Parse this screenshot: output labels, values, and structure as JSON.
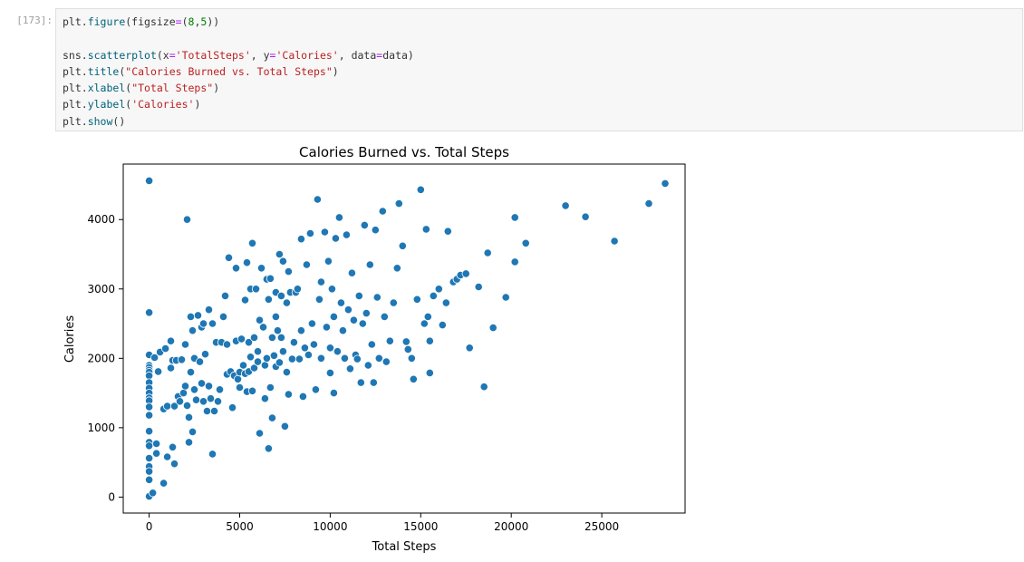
{
  "cell": {
    "prompt": "[173]:",
    "code_lines": [
      [
        {
          "t": "plt.",
          "c": ""
        },
        {
          "t": "figure",
          "c": "fn"
        },
        {
          "t": "(figsize",
          "c": ""
        },
        {
          "t": "=",
          "c": "op"
        },
        {
          "t": "(",
          "c": ""
        },
        {
          "t": "8",
          "c": "num"
        },
        {
          "t": ",",
          "c": ""
        },
        {
          "t": "5",
          "c": "num"
        },
        {
          "t": "))",
          "c": ""
        }
      ],
      [],
      [
        {
          "t": "sns.",
          "c": ""
        },
        {
          "t": "scatterplot",
          "c": "fn"
        },
        {
          "t": "(x",
          "c": ""
        },
        {
          "t": "=",
          "c": "op"
        },
        {
          "t": "'TotalSteps'",
          "c": "str"
        },
        {
          "t": ", y",
          "c": ""
        },
        {
          "t": "=",
          "c": "op"
        },
        {
          "t": "'Calories'",
          "c": "str"
        },
        {
          "t": ", data",
          "c": ""
        },
        {
          "t": "=",
          "c": "op"
        },
        {
          "t": "data)",
          "c": ""
        }
      ],
      [
        {
          "t": "plt.",
          "c": ""
        },
        {
          "t": "title",
          "c": "fn"
        },
        {
          "t": "(",
          "c": ""
        },
        {
          "t": "\"Calories Burned vs. Total Steps\"",
          "c": "str"
        },
        {
          "t": ")",
          "c": ""
        }
      ],
      [
        {
          "t": "plt.",
          "c": ""
        },
        {
          "t": "xlabel",
          "c": "fn"
        },
        {
          "t": "(",
          "c": ""
        },
        {
          "t": "\"Total Steps\"",
          "c": "str"
        },
        {
          "t": ")",
          "c": ""
        }
      ],
      [
        {
          "t": "plt.",
          "c": ""
        },
        {
          "t": "ylabel",
          "c": "fn"
        },
        {
          "t": "(",
          "c": ""
        },
        {
          "t": "'Calories'",
          "c": "str"
        },
        {
          "t": ")",
          "c": ""
        }
      ],
      [
        {
          "t": "plt.",
          "c": ""
        },
        {
          "t": "show",
          "c": "fn"
        },
        {
          "t": "()",
          "c": ""
        }
      ]
    ]
  },
  "chart_data": {
    "type": "scatter",
    "title": "Calories Burned vs. Total Steps",
    "xlabel": "Total Steps",
    "ylabel": "Calories",
    "xlim": [
      -1430,
      29600
    ],
    "ylim": [
      -230,
      4800
    ],
    "xticks": [
      0,
      5000,
      10000,
      15000,
      20000,
      25000
    ],
    "yticks": [
      0,
      1000,
      2000,
      3000,
      4000
    ],
    "grid": false,
    "marker_color": "#1f77b4",
    "points": [
      [
        0,
        4560
      ],
      [
        0,
        2660
      ],
      [
        0,
        2050
      ],
      [
        0,
        1900
      ],
      [
        0,
        1870
      ],
      [
        0,
        1830
      ],
      [
        0,
        1800
      ],
      [
        0,
        1750
      ],
      [
        0,
        1650
      ],
      [
        0,
        1570
      ],
      [
        0,
        1500
      ],
      [
        0,
        1430
      ],
      [
        0,
        1390
      ],
      [
        0,
        1300
      ],
      [
        0,
        1180
      ],
      [
        0,
        950
      ],
      [
        0,
        790
      ],
      [
        0,
        740
      ],
      [
        0,
        560
      ],
      [
        0,
        440
      ],
      [
        0,
        370
      ],
      [
        0,
        250
      ],
      [
        0,
        10
      ],
      [
        200,
        60
      ],
      [
        300,
        2010
      ],
      [
        400,
        770
      ],
      [
        400,
        630
      ],
      [
        500,
        1810
      ],
      [
        600,
        2090
      ],
      [
        800,
        200
      ],
      [
        800,
        1270
      ],
      [
        900,
        2140
      ],
      [
        1000,
        1310
      ],
      [
        1000,
        580
      ],
      [
        1200,
        1860
      ],
      [
        1200,
        2250
      ],
      [
        1300,
        1970
      ],
      [
        1300,
        720
      ],
      [
        1400,
        480
      ],
      [
        1400,
        1310
      ],
      [
        1500,
        1970
      ],
      [
        1600,
        1450
      ],
      [
        1700,
        1380
      ],
      [
        1800,
        1980
      ],
      [
        1900,
        1500
      ],
      [
        2000,
        2200
      ],
      [
        2000,
        1600
      ],
      [
        2100,
        4000
      ],
      [
        2100,
        1320
      ],
      [
        2200,
        1150
      ],
      [
        2200,
        790
      ],
      [
        2300,
        1800
      ],
      [
        2300,
        2600
      ],
      [
        2400,
        2400
      ],
      [
        2400,
        940
      ],
      [
        2500,
        2000
      ],
      [
        2500,
        1550
      ],
      [
        2600,
        1400
      ],
      [
        2700,
        2620
      ],
      [
        2800,
        1950
      ],
      [
        2900,
        2450
      ],
      [
        2900,
        1640
      ],
      [
        3000,
        2500
      ],
      [
        3000,
        1380
      ],
      [
        3100,
        2060
      ],
      [
        3200,
        1240
      ],
      [
        3300,
        2700
      ],
      [
        3300,
        1600
      ],
      [
        3400,
        1420
      ],
      [
        3500,
        620
      ],
      [
        3500,
        2500
      ],
      [
        3600,
        1240
      ],
      [
        3700,
        2230
      ],
      [
        3800,
        1380
      ],
      [
        3900,
        1550
      ],
      [
        4000,
        2230
      ],
      [
        4100,
        2600
      ],
      [
        4200,
        2900
      ],
      [
        4300,
        1770
      ],
      [
        4300,
        2200
      ],
      [
        4400,
        3450
      ],
      [
        4500,
        1810
      ],
      [
        4600,
        1290
      ],
      [
        4700,
        1750
      ],
      [
        4800,
        2250
      ],
      [
        4800,
        3300
      ],
      [
        4900,
        1700
      ],
      [
        5000,
        1800
      ],
      [
        5000,
        1580
      ],
      [
        5100,
        2280
      ],
      [
        5200,
        1900
      ],
      [
        5300,
        1780
      ],
      [
        5300,
        2840
      ],
      [
        5400,
        3380
      ],
      [
        5400,
        1520
      ],
      [
        5500,
        2230
      ],
      [
        5500,
        1810
      ],
      [
        5600,
        3000
      ],
      [
        5600,
        2020
      ],
      [
        5700,
        3660
      ],
      [
        5700,
        1530
      ],
      [
        5800,
        2300
      ],
      [
        5800,
        1860
      ],
      [
        5900,
        3000
      ],
      [
        6000,
        2100
      ],
      [
        6000,
        1950
      ],
      [
        6100,
        2550
      ],
      [
        6100,
        920
      ],
      [
        6200,
        3300
      ],
      [
        6300,
        2450
      ],
      [
        6400,
        1900
      ],
      [
        6400,
        1420
      ],
      [
        6500,
        3140
      ],
      [
        6500,
        2000
      ],
      [
        6600,
        2850
      ],
      [
        6600,
        700
      ],
      [
        6700,
        3150
      ],
      [
        6700,
        1580
      ],
      [
        6800,
        2300
      ],
      [
        6800,
        1140
      ],
      [
        6900,
        2040
      ],
      [
        7000,
        2950
      ],
      [
        7000,
        2600
      ],
      [
        7000,
        1880
      ],
      [
        7100,
        2400
      ],
      [
        7200,
        3500
      ],
      [
        7200,
        1940
      ],
      [
        7300,
        2900
      ],
      [
        7300,
        2300
      ],
      [
        7400,
        3400
      ],
      [
        7400,
        2100
      ],
      [
        7500,
        1020
      ],
      [
        7600,
        2800
      ],
      [
        7600,
        1800
      ],
      [
        7700,
        3250
      ],
      [
        7700,
        1480
      ],
      [
        7800,
        2950
      ],
      [
        7900,
        1990
      ],
      [
        8000,
        2230
      ],
      [
        8100,
        2950
      ],
      [
        8200,
        3000
      ],
      [
        8300,
        1990
      ],
      [
        8400,
        3720
      ],
      [
        8400,
        2400
      ],
      [
        8500,
        1450
      ],
      [
        8600,
        2150
      ],
      [
        8700,
        3350
      ],
      [
        8800,
        2050
      ],
      [
        8900,
        3800
      ],
      [
        9000,
        2500
      ],
      [
        9100,
        2200
      ],
      [
        9200,
        1550
      ],
      [
        9300,
        4290
      ],
      [
        9400,
        2850
      ],
      [
        9500,
        3100
      ],
      [
        9500,
        2000
      ],
      [
        9700,
        3820
      ],
      [
        9800,
        2450
      ],
      [
        9900,
        3400
      ],
      [
        10000,
        2150
      ],
      [
        10000,
        1790
      ],
      [
        10100,
        3000
      ],
      [
        10200,
        2600
      ],
      [
        10200,
        1500
      ],
      [
        10300,
        3730
      ],
      [
        10400,
        2100
      ],
      [
        10500,
        4030
      ],
      [
        10600,
        2800
      ],
      [
        10700,
        2400
      ],
      [
        10800,
        2000
      ],
      [
        10900,
        3780
      ],
      [
        11000,
        2700
      ],
      [
        11100,
        1850
      ],
      [
        11200,
        3230
      ],
      [
        11300,
        2550
      ],
      [
        11400,
        2050
      ],
      [
        11500,
        1990
      ],
      [
        11600,
        2900
      ],
      [
        11700,
        1650
      ],
      [
        11800,
        2500
      ],
      [
        11900,
        3920
      ],
      [
        12000,
        2650
      ],
      [
        12100,
        1900
      ],
      [
        12200,
        3350
      ],
      [
        12300,
        2200
      ],
      [
        12400,
        1650
      ],
      [
        12500,
        3850
      ],
      [
        12600,
        2880
      ],
      [
        12700,
        2000
      ],
      [
        12900,
        4120
      ],
      [
        13000,
        2600
      ],
      [
        13100,
        1950
      ],
      [
        13300,
        2250
      ],
      [
        13500,
        2800
      ],
      [
        13700,
        3300
      ],
      [
        13800,
        4230
      ],
      [
        14000,
        3620
      ],
      [
        14200,
        2240
      ],
      [
        14300,
        2130
      ],
      [
        14500,
        2000
      ],
      [
        14600,
        1700
      ],
      [
        14800,
        2850
      ],
      [
        15000,
        4430
      ],
      [
        15200,
        2500
      ],
      [
        15300,
        3860
      ],
      [
        15400,
        2600
      ],
      [
        15500,
        2250
      ],
      [
        15500,
        1790
      ],
      [
        15700,
        2900
      ],
      [
        16000,
        3000
      ],
      [
        16200,
        2480
      ],
      [
        16400,
        2800
      ],
      [
        16500,
        3830
      ],
      [
        16800,
        3100
      ],
      [
        17000,
        3140
      ],
      [
        17200,
        3200
      ],
      [
        17500,
        3220
      ],
      [
        17700,
        2150
      ],
      [
        18200,
        3030
      ],
      [
        18500,
        1590
      ],
      [
        18700,
        3520
      ],
      [
        19000,
        2440
      ],
      [
        19700,
        2880
      ],
      [
        20200,
        3390
      ],
      [
        20200,
        4030
      ],
      [
        20800,
        3660
      ],
      [
        23000,
        4200
      ],
      [
        24100,
        4040
      ],
      [
        25700,
        3690
      ],
      [
        27600,
        4230
      ],
      [
        28500,
        4520
      ]
    ]
  }
}
